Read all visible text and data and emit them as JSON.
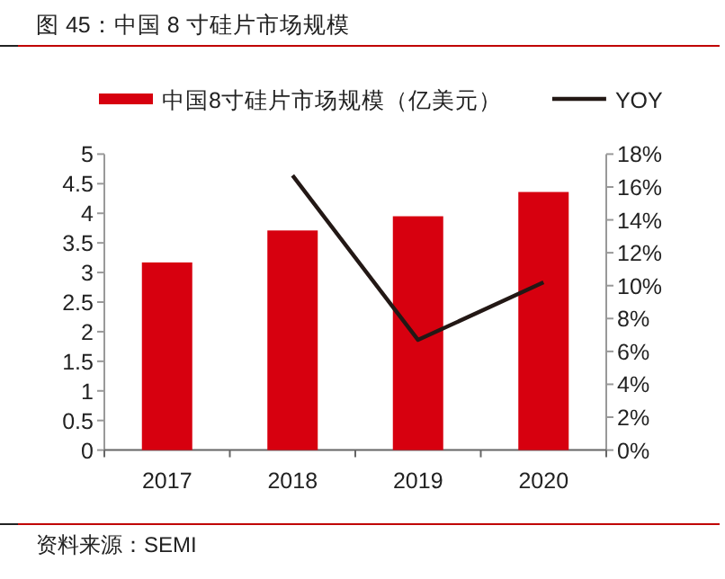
{
  "chart_data": {
    "type": "bar",
    "title": "图 45：中国 8 寸硅片市场规模",
    "categories": [
      "2017",
      "2018",
      "2019",
      "2020"
    ],
    "series": [
      {
        "name": "中国8寸硅片市场规模（亿美元）",
        "color": "#d7000f",
        "values": [
          3.17,
          3.71,
          3.95,
          4.36
        ]
      },
      {
        "name": "YOY",
        "type": "line",
        "axis": "y2",
        "color": "#231815",
        "values": [
          null,
          16.7,
          6.7,
          10.2
        ]
      }
    ],
    "ylim": [
      0,
      5
    ],
    "yticks": [
      0,
      0.5,
      1,
      1.5,
      2,
      2.5,
      3,
      3.5,
      4,
      4.5,
      5
    ],
    "y2lim": [
      0,
      18
    ],
    "y2ticks": [
      {
        "value": 0,
        "label": "0%"
      },
      {
        "value": 2,
        "label": "2%"
      },
      {
        "value": 4,
        "label": "4%"
      },
      {
        "value": 6,
        "label": "6%"
      },
      {
        "value": 8,
        "label": "8%"
      },
      {
        "value": 10,
        "label": "10%"
      },
      {
        "value": 12,
        "label": "12%"
      },
      {
        "value": 14,
        "label": "14%"
      },
      {
        "value": 16,
        "label": "16%"
      },
      {
        "value": 18,
        "label": "18%"
      }
    ],
    "legend": "top",
    "grid": false,
    "annotations": [
      "资料来源：SEMI"
    ]
  }
}
